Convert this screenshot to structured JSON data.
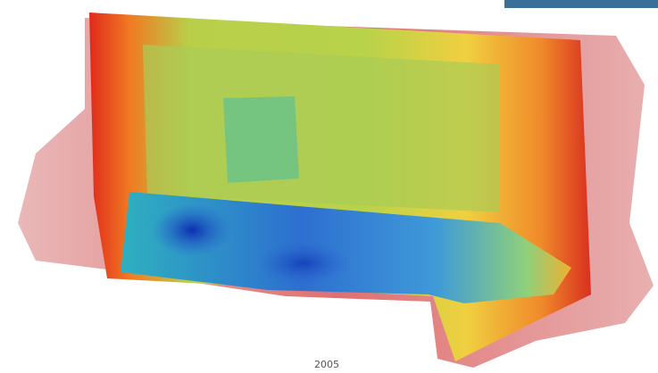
{
  "caption": "2005"
}
